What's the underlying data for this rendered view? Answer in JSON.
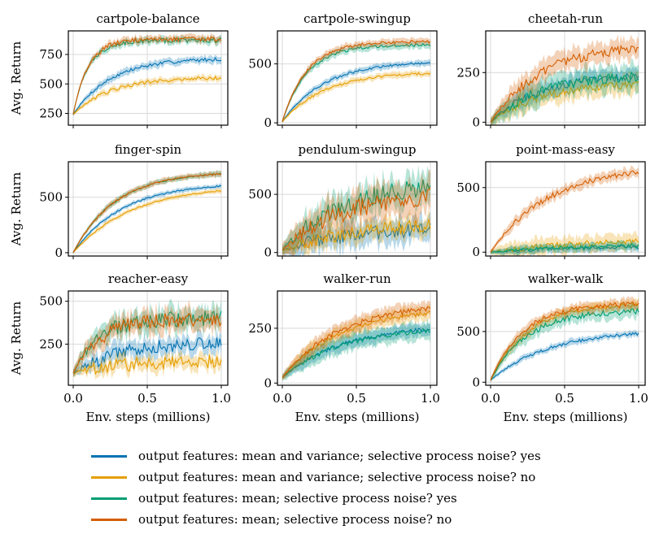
{
  "colors": {
    "blue": "#0072B2",
    "orange": "#E69F00",
    "green": "#009E73",
    "red": "#D55E00",
    "grid": "#d9d9d9"
  },
  "legend": [
    {
      "label": "output features: mean and variance; selective process noise? yes",
      "color": "#0072B2"
    },
    {
      "label": "output features: mean and variance; selective process noise? no",
      "color": "#E69F00"
    },
    {
      "label": "output features: mean; selective process noise? yes",
      "color": "#009E73"
    },
    {
      "label": "output features: mean; selective process noise? no",
      "color": "#D55E00"
    }
  ],
  "xlabel": "Env. steps (millions)",
  "ylabel": "Avg. Return",
  "chart_data": {
    "type": "line",
    "x_range": [
      0,
      1.0
    ],
    "x_ticks": [
      "0.0",
      "0.5",
      "1.0"
    ],
    "series_names": [
      "output features: mean and variance; selective process noise? yes",
      "output features: mean and variance; selective process noise? no",
      "output features: mean; selective process noise? yes",
      "output features: mean; selective process noise? no"
    ],
    "panels": [
      {
        "title": "cartpole-balance",
        "ylim": [
          150,
          950
        ],
        "yticks": [
          250,
          500,
          750
        ],
        "final_values": [
          710,
          550,
          870,
          880
        ],
        "start": 240,
        "rate": [
          4,
          4,
          10,
          10
        ],
        "noise": [
          15,
          15,
          20,
          20
        ],
        "band": [
          30,
          25,
          30,
          30
        ]
      },
      {
        "title": "cartpole-swingup",
        "ylim": [
          -20,
          780
        ],
        "yticks": [
          0,
          500
        ],
        "final_values": [
          510,
          420,
          660,
          690
        ],
        "start": 10,
        "rate": [
          3.5,
          3.5,
          6,
          6
        ],
        "noise": [
          10,
          10,
          12,
          12
        ],
        "band": [
          25,
          25,
          30,
          30
        ]
      },
      {
        "title": "cheetah-run",
        "ylim": [
          -15,
          460
        ],
        "yticks": [
          0,
          250
        ],
        "final_values": [
          230,
          190,
          230,
          370
        ],
        "start": 0,
        "rate": [
          3,
          3,
          3,
          3
        ],
        "noise": [
          20,
          20,
          25,
          25
        ],
        "band": [
          40,
          50,
          60,
          50
        ]
      },
      {
        "title": "finger-spin",
        "ylim": [
          -30,
          820
        ],
        "yticks": [
          0,
          500
        ],
        "final_values": [
          600,
          560,
          710,
          710
        ],
        "start": 0,
        "rate": [
          3,
          2.5,
          3.5,
          3.5
        ],
        "noise": [
          6,
          6,
          8,
          8
        ],
        "band": [
          20,
          20,
          25,
          25
        ]
      },
      {
        "title": "pendulum-swingup",
        "ylim": [
          -30,
          780
        ],
        "yticks": [
          0,
          500
        ],
        "final_values": [
          200,
          230,
          560,
          480
        ],
        "start": 20,
        "rate": [
          2,
          2,
          2.5,
          2.5
        ],
        "noise": [
          60,
          60,
          80,
          80
        ],
        "band": [
          100,
          80,
          120,
          140
        ]
      },
      {
        "title": "point-mass-easy",
        "ylim": [
          -30,
          700
        ],
        "yticks": [
          0,
          500
        ],
        "final_values": [
          40,
          80,
          50,
          620
        ],
        "start": 0,
        "rate": [
          1.5,
          1.5,
          1.5,
          2.5
        ],
        "noise": [
          15,
          25,
          15,
          20
        ],
        "band": [
          30,
          60,
          30,
          40
        ]
      },
      {
        "title": "reacher-easy",
        "ylim": [
          10,
          560
        ],
        "yticks": [
          250,
          500
        ],
        "final_values": [
          260,
          150,
          400,
          390
        ],
        "start": 80,
        "rate": [
          3,
          3,
          6,
          6
        ],
        "noise": [
          40,
          40,
          45,
          45
        ],
        "band": [
          50,
          40,
          60,
          60
        ]
      },
      {
        "title": "walker-run",
        "ylim": [
          -10,
          420
        ],
        "yticks": [
          0,
          250
        ],
        "final_values": [
          245,
          320,
          240,
          340
        ],
        "start": 25,
        "rate": [
          2.5,
          2.5,
          2.5,
          2.5
        ],
        "noise": [
          10,
          10,
          12,
          12
        ],
        "band": [
          30,
          35,
          40,
          35
        ]
      },
      {
        "title": "walker-walk",
        "ylim": [
          -30,
          900
        ],
        "yticks": [
          0,
          500
        ],
        "final_values": [
          480,
          760,
          700,
          770
        ],
        "start": 20,
        "rate": [
          2.5,
          4,
          4,
          4.5
        ],
        "noise": [
          15,
          20,
          30,
          25
        ],
        "band": [
          30,
          50,
          60,
          50
        ]
      }
    ]
  }
}
